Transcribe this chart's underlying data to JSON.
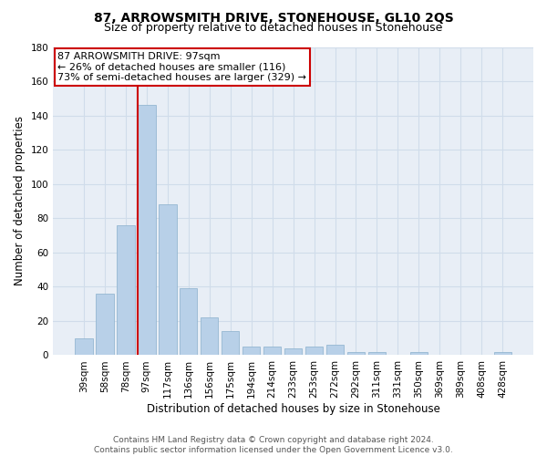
{
  "title": "87, ARROWSMITH DRIVE, STONEHOUSE, GL10 2QS",
  "subtitle": "Size of property relative to detached houses in Stonehouse",
  "xlabel": "Distribution of detached houses by size in Stonehouse",
  "ylabel": "Number of detached properties",
  "categories": [
    "39sqm",
    "58sqm",
    "78sqm",
    "97sqm",
    "117sqm",
    "136sqm",
    "156sqm",
    "175sqm",
    "194sqm",
    "214sqm",
    "233sqm",
    "253sqm",
    "272sqm",
    "292sqm",
    "311sqm",
    "331sqm",
    "350sqm",
    "369sqm",
    "389sqm",
    "408sqm",
    "428sqm"
  ],
  "values": [
    10,
    36,
    76,
    146,
    88,
    39,
    22,
    14,
    5,
    5,
    4,
    5,
    6,
    2,
    2,
    0,
    2,
    0,
    0,
    0,
    2
  ],
  "bar_color": "#b8d0e8",
  "bar_edge_color": "#8ab0cc",
  "vline_x_index": 3,
  "vline_color": "#cc0000",
  "annotation_line1": "87 ARROWSMITH DRIVE: 97sqm",
  "annotation_line2": "← 26% of detached houses are smaller (116)",
  "annotation_line3": "73% of semi-detached houses are larger (329) →",
  "annotation_box_edgecolor": "#cc0000",
  "annotation_box_facecolor": "#ffffff",
  "ylim": [
    0,
    180
  ],
  "yticks": [
    0,
    20,
    40,
    60,
    80,
    100,
    120,
    140,
    160,
    180
  ],
  "grid_color": "#d0dcea",
  "background_color": "#e8eef6",
  "footer_line1": "Contains HM Land Registry data © Crown copyright and database right 2024.",
  "footer_line2": "Contains public sector information licensed under the Open Government Licence v3.0.",
  "title_fontsize": 10,
  "subtitle_fontsize": 9,
  "tick_fontsize": 7.5,
  "ylabel_fontsize": 8.5,
  "xlabel_fontsize": 8.5,
  "footer_fontsize": 6.5,
  "annotation_fontsize": 8
}
